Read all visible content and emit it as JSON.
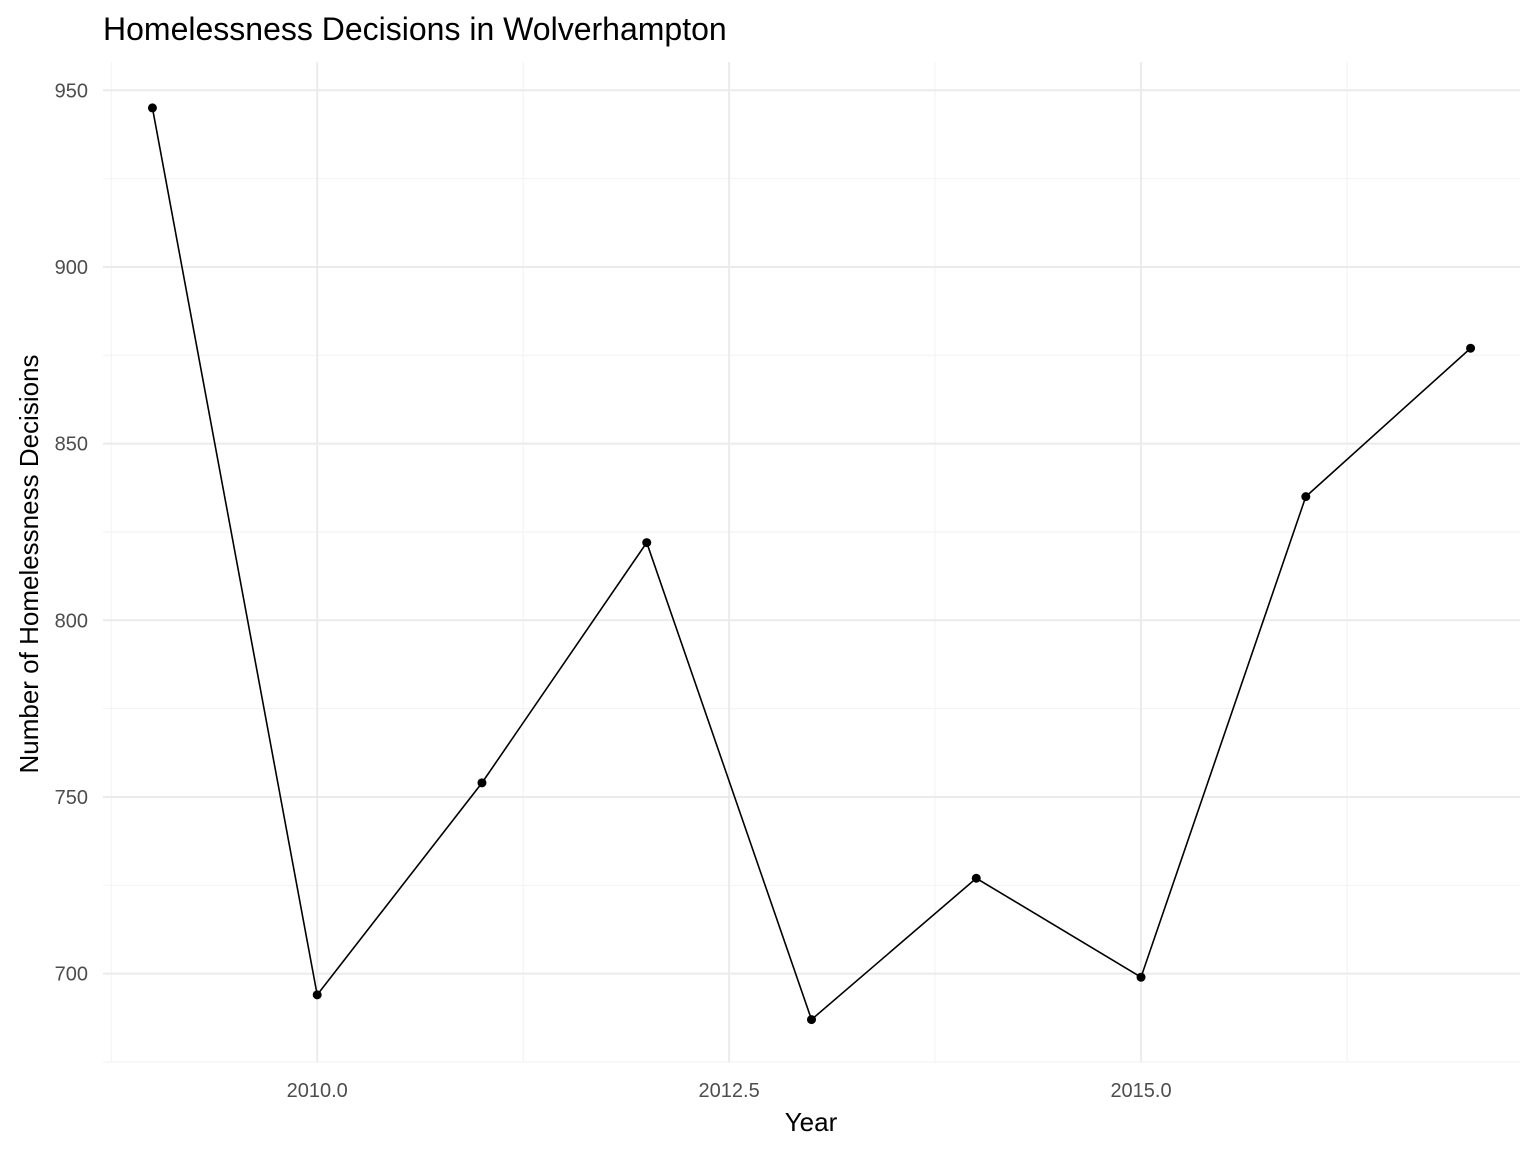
{
  "chart_data": {
    "type": "line",
    "title": "Homelessness Decisions in Wolverhampton",
    "xlabel": "Year",
    "ylabel": "Number of Homelessness Decisions",
    "x": [
      2009,
      2010,
      2011,
      2012,
      2013,
      2014,
      2015,
      2016,
      2017
    ],
    "series": [
      {
        "values": [
          945,
          694,
          754,
          822,
          687,
          727,
          699,
          835,
          877
        ]
      }
    ],
    "xlim": [
      2008.7,
      2017.3
    ],
    "ylim": [
      675,
      958
    ],
    "x_ticks": [
      "2010.0",
      "2012.5",
      "2015.0"
    ],
    "y_ticks": [
      "700",
      "750",
      "800",
      "850",
      "900",
      "950"
    ],
    "grid": true,
    "colors": {
      "line": "#000000",
      "grid": "#ebebeb",
      "tick_text": "#4d4d4d"
    }
  }
}
